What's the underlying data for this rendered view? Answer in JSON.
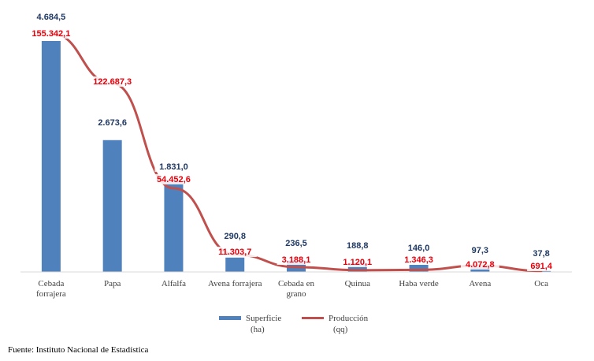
{
  "chart_data": {
    "type": "bar",
    "categories": [
      "Cebada\nforrajera",
      "Papa",
      "Alfalfa",
      "Avena forrajera",
      "Cebada en\ngrano",
      "Quinua",
      "Haba verde",
      "Avena",
      "Oca"
    ],
    "series": [
      {
        "name": "Superficie\n(ha)",
        "kind": "bar",
        "color": "#4f81bd",
        "values": [
          4684.5,
          2673.6,
          1831.0,
          290.8,
          236.5,
          188.8,
          146.0,
          97.3,
          37.8
        ],
        "labels": [
          "4.684,5",
          "2.673,6",
          "1.831,0",
          "290,8",
          "236,5",
          "188,8",
          "146,0",
          "97,3",
          "37,8"
        ]
      },
      {
        "name": "Producción\n(qq)",
        "kind": "line",
        "color": "#c0504d",
        "values": [
          155342.1,
          122687.3,
          54452.6,
          11303.7,
          3188.1,
          1120.1,
          1346.3,
          4072.8,
          691.4
        ],
        "labels": [
          "155.342,1",
          "122.687,3",
          "54.452,6",
          "11.303,7",
          "3.188,1",
          "1.120,1",
          "1.346,3",
          "4.072,8",
          "691,4"
        ]
      }
    ],
    "ylim_bar": [
      0,
      4684.5
    ],
    "ylim_line": [
      0,
      177000
    ],
    "grid": false,
    "legend_position": "bottom"
  },
  "source": "Fuente: Instituto Nacional de Estadística",
  "colors": {
    "superficie_label": "#1f3864",
    "produccion_label": "#e8000b"
  }
}
